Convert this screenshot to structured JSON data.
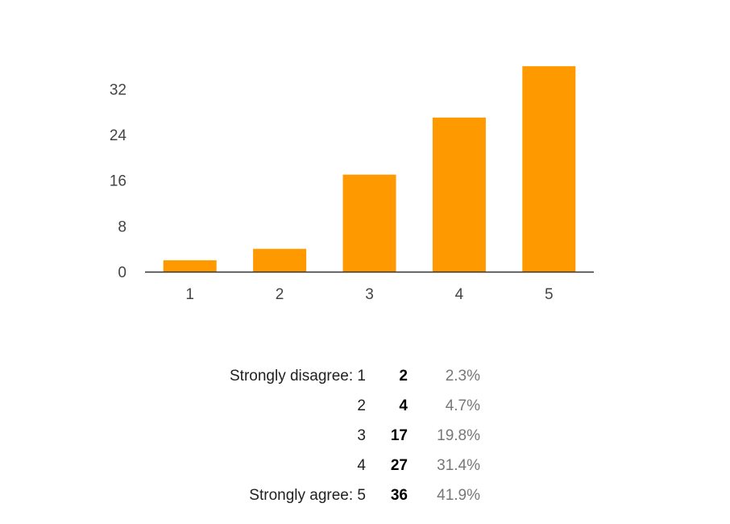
{
  "chart_data": {
    "type": "bar",
    "categories": [
      "1",
      "2",
      "3",
      "4",
      "5"
    ],
    "values": [
      2,
      4,
      17,
      27,
      36
    ],
    "yticks": [
      0,
      8,
      16,
      24,
      32
    ],
    "ylim": [
      0,
      36
    ],
    "bar_color": "#ff9900",
    "axis_color": "#333333",
    "grid": false
  },
  "summary": {
    "rows": [
      {
        "label": "Strongly disagree: 1",
        "count": "2",
        "percent": "2.3%"
      },
      {
        "label": "2",
        "count": "4",
        "percent": "4.7%"
      },
      {
        "label": "3",
        "count": "17",
        "percent": "19.8%"
      },
      {
        "label": "4",
        "count": "27",
        "percent": "31.4%"
      },
      {
        "label": "Strongly agree: 5",
        "count": "36",
        "percent": "41.9%"
      }
    ]
  }
}
